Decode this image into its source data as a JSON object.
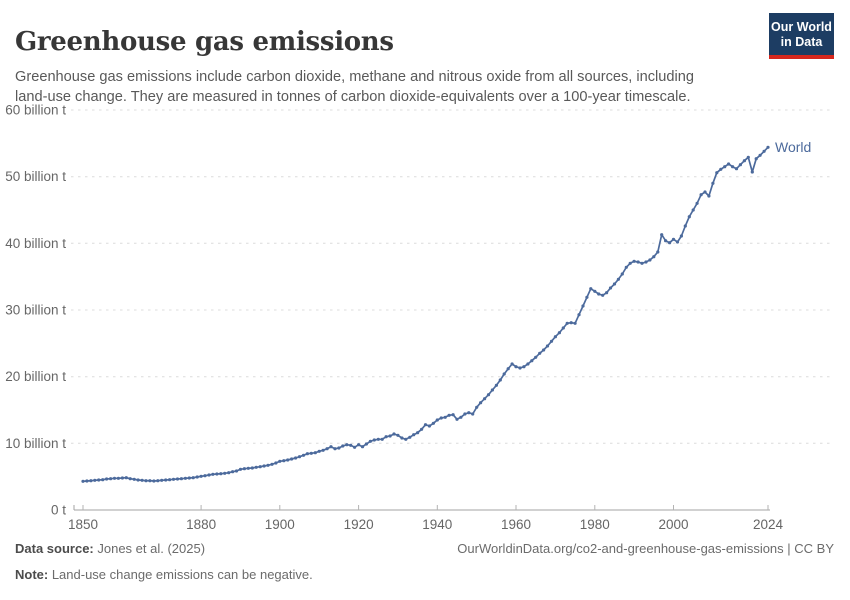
{
  "header": {
    "title": "Greenhouse gas emissions",
    "subtitle": "Greenhouse gas emissions include carbon dioxide, methane and nitrous oxide from all sources, including land-use change. They are measured in tonnes of carbon dioxide-equivalents over a 100-year timescale.",
    "logo": {
      "line1": "Our World",
      "line2": "in Data",
      "bg_color": "#1d3d63",
      "bar_color": "#d7271d"
    }
  },
  "chart_data": {
    "type": "line",
    "title": "Greenhouse gas emissions",
    "unit": "billion tonnes CO2-equivalents",
    "xlabel": "",
    "ylabel": "",
    "xlim": [
      1850,
      2024
    ],
    "ylim": [
      0,
      60
    ],
    "grid": "horizontal-dashed",
    "legend_position": "end-of-line",
    "x_ticks": [
      1850,
      1880,
      1900,
      1920,
      1940,
      1960,
      1980,
      2000,
      2024
    ],
    "y_ticks": [
      0,
      10,
      20,
      30,
      40,
      50,
      60
    ],
    "y_tick_labels": [
      "0 t",
      "10 billion t",
      "20 billion t",
      "30 billion t",
      "40 billion t",
      "50 billion t",
      "60 billion t"
    ],
    "series": [
      {
        "name": "World",
        "color": "#4c6a9c",
        "x_start": 1850,
        "x_step": 1,
        "values": [
          4.3,
          4.35,
          4.4,
          4.45,
          4.5,
          4.55,
          4.65,
          4.7,
          4.75,
          4.75,
          4.8,
          4.85,
          4.7,
          4.6,
          4.5,
          4.45,
          4.4,
          4.4,
          4.35,
          4.4,
          4.45,
          4.5,
          4.55,
          4.6,
          4.65,
          4.7,
          4.75,
          4.8,
          4.85,
          4.95,
          5.05,
          5.15,
          5.25,
          5.35,
          5.4,
          5.45,
          5.5,
          5.6,
          5.75,
          5.85,
          6.1,
          6.2,
          6.25,
          6.3,
          6.4,
          6.5,
          6.6,
          6.7,
          6.85,
          7.05,
          7.3,
          7.4,
          7.5,
          7.65,
          7.8,
          8.0,
          8.2,
          8.45,
          8.5,
          8.6,
          8.8,
          8.95,
          9.2,
          9.5,
          9.2,
          9.3,
          9.6,
          9.8,
          9.7,
          9.4,
          9.8,
          9.5,
          9.9,
          10.3,
          10.5,
          10.6,
          10.6,
          11.0,
          11.1,
          11.4,
          11.2,
          10.8,
          10.6,
          10.9,
          11.3,
          11.6,
          12.1,
          12.8,
          12.6,
          13.0,
          13.5,
          13.8,
          13.9,
          14.2,
          14.3,
          13.6,
          13.9,
          14.4,
          14.6,
          14.4,
          15.4,
          16.1,
          16.7,
          17.3,
          18.0,
          18.7,
          19.5,
          20.4,
          21.2,
          21.9,
          21.5,
          21.3,
          21.5,
          21.9,
          22.4,
          22.9,
          23.5,
          24.0,
          24.6,
          25.3,
          26.0,
          26.6,
          27.3,
          28.0,
          28.1,
          28.0,
          29.3,
          30.6,
          31.9,
          33.2,
          32.8,
          32.4,
          32.2,
          32.6,
          33.3,
          33.9,
          34.6,
          35.4,
          36.4,
          37.0,
          37.3,
          37.2,
          37.0,
          37.2,
          37.5,
          38.0,
          38.7,
          41.3,
          40.4,
          40.1,
          40.6,
          40.2,
          41.1,
          42.6,
          44.0,
          45.0,
          46.0,
          47.3,
          47.7,
          47.1,
          49.0,
          50.6,
          51.1,
          51.5,
          51.9,
          51.5,
          51.2,
          51.8,
          52.4,
          52.9,
          50.7,
          52.7,
          53.2,
          53.8,
          54.4
        ]
      }
    ]
  },
  "footer": {
    "source_label": "Data source:",
    "source_text": " Jones et al. (2025)",
    "note_label": "Note:",
    "note_text": " Land-use change emissions can be negative.",
    "credit": "OurWorldinData.org/co2-and-greenhouse-gas-emissions | CC BY"
  }
}
